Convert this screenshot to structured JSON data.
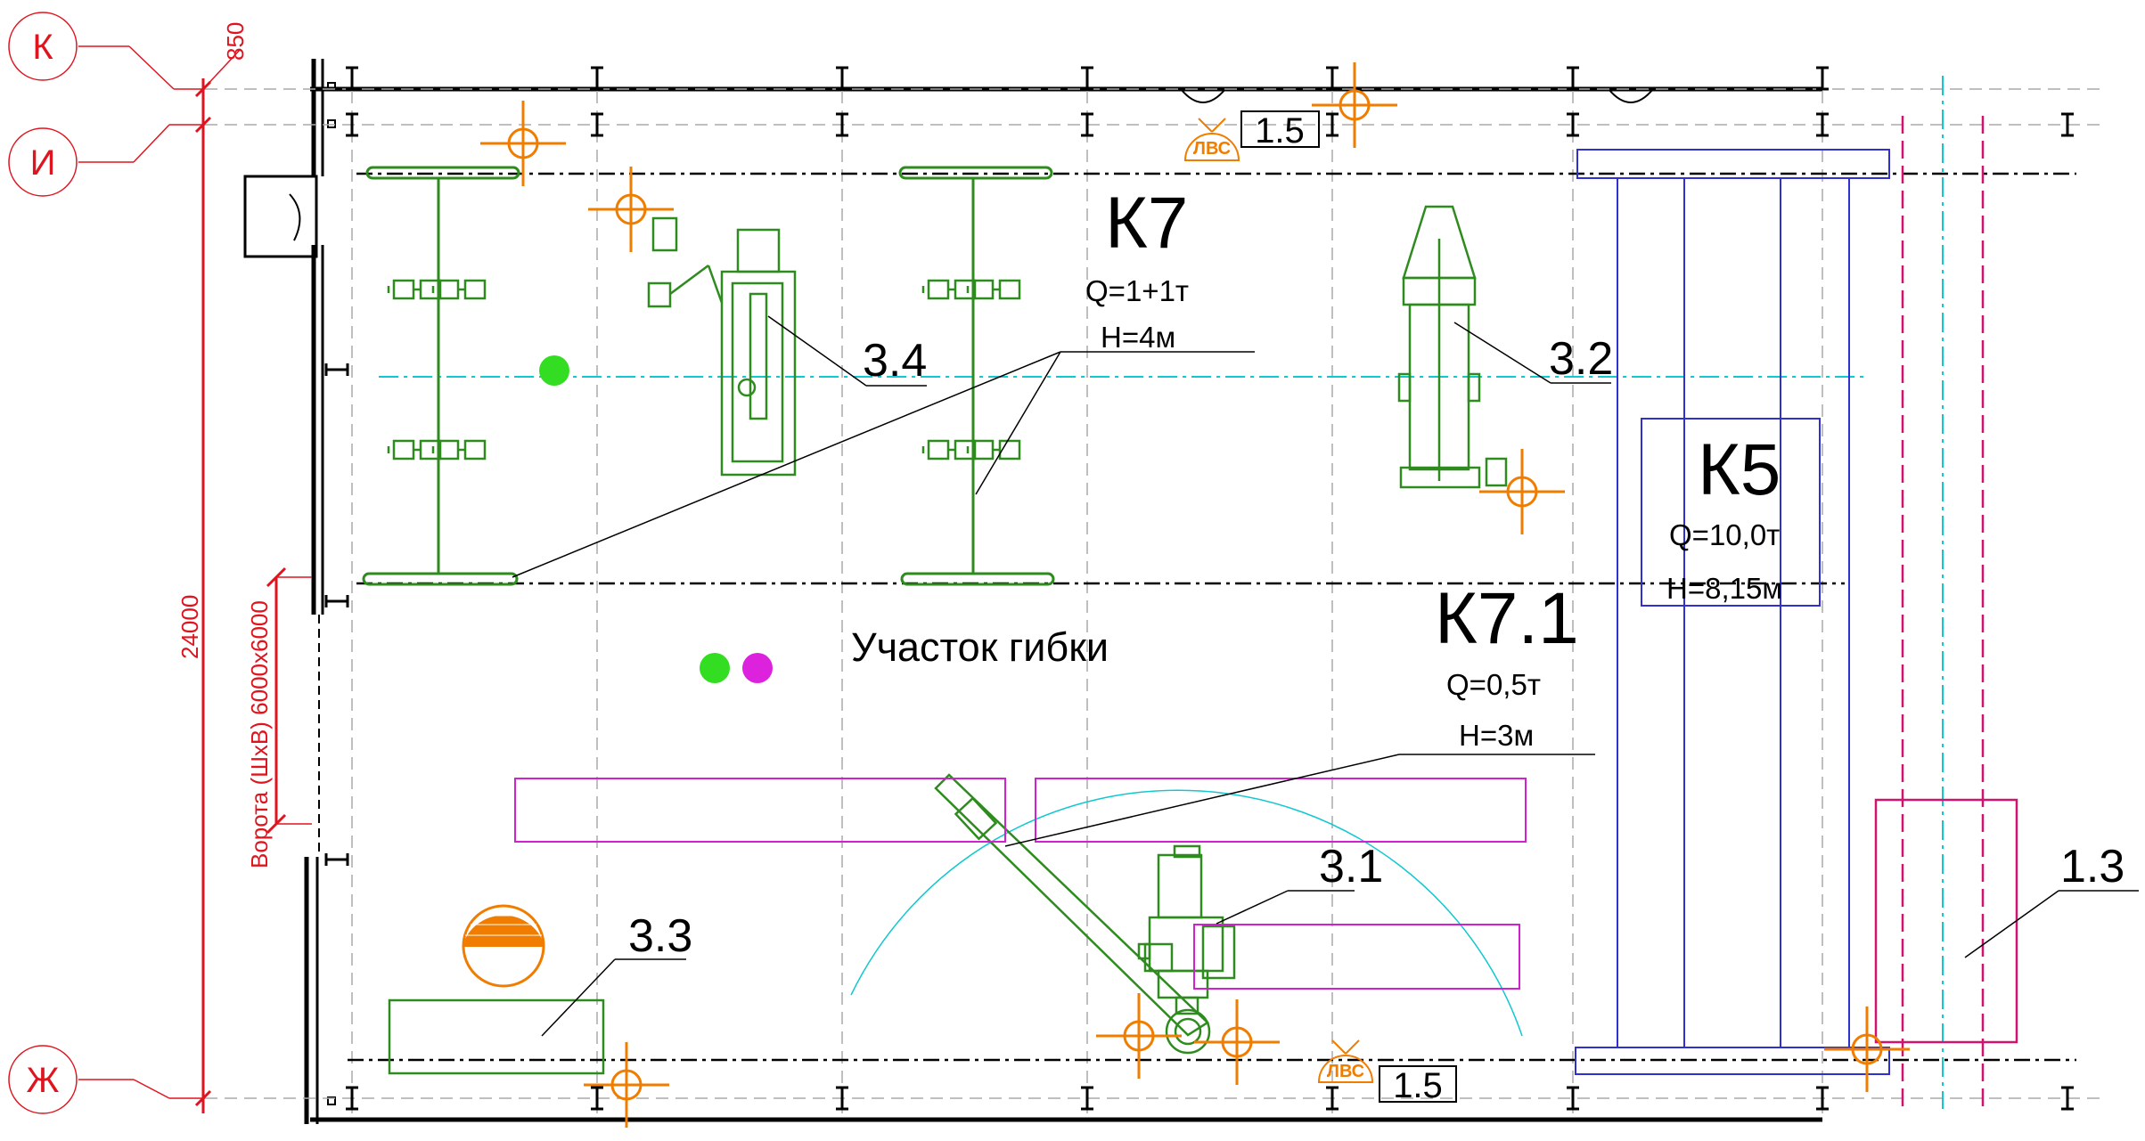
{
  "axes": {
    "k": "К",
    "i": "И",
    "zh": "Ж"
  },
  "dimensions": {
    "top_offset": "850",
    "total": "24000",
    "gate": "Ворота (ШхВ) 6000x6000"
  },
  "area_label": "Участок гибки",
  "cranes": {
    "k7": {
      "name": "К7",
      "capacity": "Q=1+1т",
      "height": "H=4м"
    },
    "k5": {
      "name": "К5",
      "capacity": "Q=10,0т",
      "height": "H=8,15м"
    },
    "k71": {
      "name": "К7.1",
      "capacity": "Q=0,5т",
      "height": "H=3м"
    }
  },
  "equipment_labels": {
    "e31": "3.1",
    "e32": "3.2",
    "e33": "3.3",
    "e34": "3.4",
    "e13": "1.3"
  },
  "lan": {
    "abbr": "ЛВС",
    "tag": "1.5"
  },
  "colors": {
    "axis": "#e0141e",
    "equipment": "#2e8b1e",
    "beam": "#3030d0",
    "zone": "#d020d0",
    "centerline": "#10c8d0",
    "target": "#f07d00",
    "dot_green": "#33dd22",
    "dot_magenta": "#dd22dd"
  }
}
